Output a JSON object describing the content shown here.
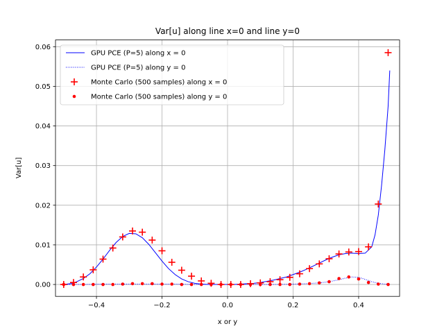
{
  "chart_data": {
    "type": "line",
    "title": "Var[u] along line x=0 and line y=0",
    "xlabel": "x or y",
    "ylabel": "Var[u]",
    "xlim": [
      -0.525,
      0.525
    ],
    "ylim": [
      -0.003,
      0.0617
    ],
    "xticks": [
      -0.4,
      -0.2,
      0.0,
      0.2,
      0.4
    ],
    "xtick_labels": [
      "−0.4",
      "−0.2",
      "0.0",
      "0.2",
      "0.4"
    ],
    "yticks": [
      0.0,
      0.01,
      0.02,
      0.03,
      0.04,
      0.05,
      0.06
    ],
    "ytick_labels": [
      "0.00",
      "0.01",
      "0.02",
      "0.03",
      "0.04",
      "0.05",
      "0.06"
    ],
    "grid": true,
    "legend_position": "top-left",
    "series": [
      {
        "name": "GPU PCE (P=5) along x = 0",
        "style": "line-solid",
        "color": "#0000ff",
        "x": [
          -0.5,
          -0.48,
          -0.46,
          -0.44,
          -0.42,
          -0.4,
          -0.38,
          -0.36,
          -0.34,
          -0.32,
          -0.3,
          -0.28,
          -0.26,
          -0.24,
          -0.22,
          -0.2,
          -0.18,
          -0.16,
          -0.14,
          -0.12,
          -0.1,
          -0.08,
          -0.06,
          -0.04,
          -0.02,
          0.0,
          0.02,
          0.04,
          0.06,
          0.08,
          0.1,
          0.12,
          0.14,
          0.16,
          0.18,
          0.2,
          0.22,
          0.24,
          0.26,
          0.28,
          0.3,
          0.32,
          0.34,
          0.36,
          0.38,
          0.4,
          0.42,
          0.44,
          0.45,
          0.46,
          0.47,
          0.48,
          0.49,
          0.495
        ],
        "y": [
          0.0,
          0.0002,
          0.0007,
          0.0015,
          0.0027,
          0.0044,
          0.0064,
          0.0086,
          0.0106,
          0.0121,
          0.0129,
          0.0128,
          0.0118,
          0.0101,
          0.008,
          0.0059,
          0.004,
          0.0025,
          0.0014,
          0.0007,
          0.0003,
          0.0001,
          0.0,
          0.0,
          0.0,
          0.0,
          0.0,
          0.0001,
          0.0002,
          0.0003,
          0.0005,
          0.0008,
          0.0011,
          0.0015,
          0.0019,
          0.0025,
          0.0031,
          0.0038,
          0.0046,
          0.0054,
          0.0062,
          0.0069,
          0.0075,
          0.0078,
          0.0079,
          0.0078,
          0.0079,
          0.0095,
          0.0125,
          0.0175,
          0.025,
          0.034,
          0.045,
          0.054
        ]
      },
      {
        "name": "GPU PCE (P=5) along y = 0",
        "style": "line-dotted",
        "color": "#0000ff",
        "x": [
          -0.5,
          -0.44,
          -0.38,
          -0.32,
          -0.28,
          -0.24,
          -0.2,
          -0.16,
          -0.1,
          -0.05,
          0.0,
          0.05,
          0.1,
          0.15,
          0.2,
          0.24,
          0.28,
          0.31,
          0.34,
          0.36,
          0.38,
          0.4,
          0.42,
          0.44,
          0.46,
          0.48,
          0.495
        ],
        "y": [
          0.0,
          0.0,
          0.0001,
          0.0001,
          0.0001,
          0.0001,
          0.0001,
          0.0001,
          0.0,
          0.0,
          0.0,
          0.0,
          0.0,
          0.0,
          0.0001,
          0.0002,
          0.0004,
          0.0007,
          0.0012,
          0.0016,
          0.0019,
          0.0018,
          0.0013,
          0.0007,
          0.0003,
          0.0001,
          0.0
        ]
      },
      {
        "name": "Monte Carlo (500 samples) along x = 0",
        "style": "marker-plus",
        "color": "#ff0000",
        "x": [
          -0.5,
          -0.47,
          -0.44,
          -0.41,
          -0.38,
          -0.35,
          -0.32,
          -0.29,
          -0.26,
          -0.23,
          -0.2,
          -0.17,
          -0.14,
          -0.11,
          -0.08,
          -0.05,
          -0.02,
          0.01,
          0.04,
          0.07,
          0.1,
          0.13,
          0.16,
          0.19,
          0.22,
          0.25,
          0.28,
          0.31,
          0.34,
          0.37,
          0.4,
          0.43,
          0.46,
          0.49
        ],
        "y": [
          0.0,
          0.0005,
          0.0019,
          0.0037,
          0.0064,
          0.0092,
          0.012,
          0.0135,
          0.0132,
          0.0112,
          0.0085,
          0.0056,
          0.0036,
          0.0021,
          0.0009,
          0.0003,
          0.0,
          0.0,
          0.0,
          0.0002,
          0.0004,
          0.0007,
          0.0012,
          0.0018,
          0.0027,
          0.004,
          0.0052,
          0.0065,
          0.0077,
          0.0082,
          0.0083,
          0.0095,
          0.0203,
          0.0585
        ]
      },
      {
        "name": "Monte Carlo (500 samples) along y = 0",
        "style": "marker-dot",
        "color": "#ff0000",
        "x": [
          -0.5,
          -0.47,
          -0.44,
          -0.41,
          -0.38,
          -0.35,
          -0.32,
          -0.29,
          -0.26,
          -0.23,
          -0.2,
          -0.17,
          -0.14,
          -0.11,
          -0.08,
          -0.05,
          -0.02,
          0.01,
          0.04,
          0.07,
          0.1,
          0.13,
          0.16,
          0.19,
          0.22,
          0.25,
          0.28,
          0.31,
          0.34,
          0.37,
          0.4,
          0.43,
          0.46,
          0.49
        ],
        "y": [
          0.0,
          0.0,
          0.0,
          0.0,
          0.0,
          0.0,
          0.0001,
          0.0002,
          0.0002,
          0.0002,
          0.0001,
          0.0001,
          0.0,
          0.0,
          0.0,
          0.0,
          0.0,
          0.0,
          0.0,
          0.0,
          0.0,
          0.0,
          0.0,
          0.0,
          0.0001,
          0.0002,
          0.0004,
          0.0007,
          0.0015,
          0.0019,
          0.0014,
          0.0005,
          0.0001,
          0.0
        ]
      }
    ]
  }
}
